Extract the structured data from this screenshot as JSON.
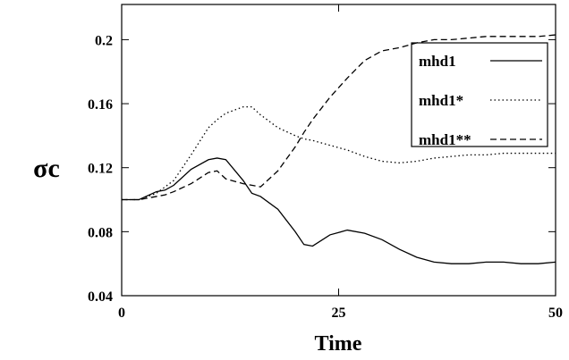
{
  "chart_data": {
    "type": "line",
    "x_label": "Time",
    "y_label": "σc",
    "x": [
      0,
      2,
      4,
      5,
      6,
      8,
      10,
      11,
      12,
      14,
      15,
      16,
      18,
      20,
      21,
      22,
      24,
      26,
      28,
      30,
      32,
      34,
      36,
      38,
      40,
      42,
      44,
      46,
      48,
      50
    ],
    "series": [
      {
        "name": "mhd1",
        "color": "#000000",
        "dash": "solid",
        "values": [
          0.1,
          0.1,
          0.105,
          0.106,
          0.109,
          0.119,
          0.125,
          0.126,
          0.125,
          0.112,
          0.104,
          0.102,
          0.094,
          0.08,
          0.072,
          0.071,
          0.078,
          0.081,
          0.079,
          0.075,
          0.069,
          0.064,
          0.061,
          0.06,
          0.06,
          0.061,
          0.061,
          0.06,
          0.06,
          0.061
        ]
      },
      {
        "name": "mhd1*",
        "color": "#000000",
        "dash": "dotted",
        "values": [
          0.1,
          0.1,
          0.104,
          0.108,
          0.112,
          0.128,
          0.145,
          0.15,
          0.154,
          0.158,
          0.158,
          0.153,
          0.145,
          0.14,
          0.138,
          0.137,
          0.134,
          0.131,
          0.127,
          0.124,
          0.123,
          0.124,
          0.126,
          0.127,
          0.128,
          0.128,
          0.129,
          0.129,
          0.129,
          0.129
        ]
      },
      {
        "name": "mhd1**",
        "color": "#000000",
        "dash": "dashed",
        "values": [
          0.1,
          0.1,
          0.102,
          0.103,
          0.105,
          0.11,
          0.117,
          0.118,
          0.113,
          0.11,
          0.109,
          0.108,
          0.118,
          0.133,
          0.142,
          0.15,
          0.164,
          0.176,
          0.187,
          0.193,
          0.195,
          0.198,
          0.2,
          0.2,
          0.201,
          0.202,
          0.202,
          0.202,
          0.202,
          0.203
        ]
      }
    ],
    "xlim": [
      0,
      50
    ],
    "xticks": [
      0,
      25,
      50
    ],
    "ylim": [
      0.04,
      0.222
    ],
    "yticks": [
      0.04,
      0.08,
      0.12,
      0.16,
      0.2
    ],
    "legend": "upper right"
  }
}
